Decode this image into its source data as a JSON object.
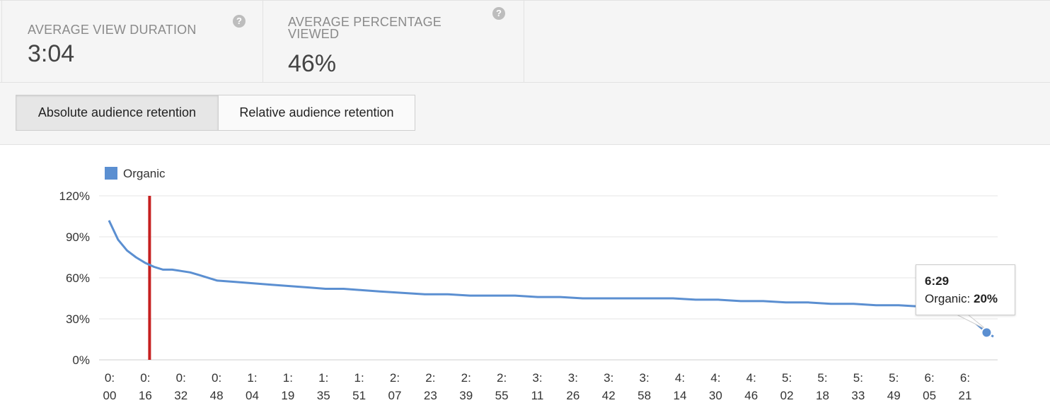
{
  "stats": [
    {
      "label": "AVERAGE VIEW DURATION",
      "value": "3:04",
      "help": "?"
    },
    {
      "label": "AVERAGE PERCENTAGE VIEWED",
      "value": "46%",
      "help": "?"
    }
  ],
  "tabs": {
    "absolute": "Absolute audience retention",
    "relative": "Relative audience retention",
    "selected": "absolute"
  },
  "tooltip": {
    "time": "6:29",
    "series": "Organic:",
    "value": "20%"
  },
  "colors": {
    "line": "#5b8fd1",
    "marker": "#c62020",
    "legend": "#5b8fd1"
  },
  "chart_data": {
    "type": "line",
    "legend": [
      "Organic"
    ],
    "ylim": [
      0,
      120
    ],
    "y_ticks": [
      "120%",
      "90%",
      "60%",
      "30%",
      "0%"
    ],
    "y_tick_values": [
      120,
      90,
      60,
      30,
      0
    ],
    "x_tick_labels": [
      [
        "0:",
        "00"
      ],
      [
        "0:",
        "16"
      ],
      [
        "0:",
        "32"
      ],
      [
        "0:",
        "48"
      ],
      [
        "1:",
        "04"
      ],
      [
        "1:",
        "19"
      ],
      [
        "1:",
        "35"
      ],
      [
        "1:",
        "51"
      ],
      [
        "2:",
        "07"
      ],
      [
        "2:",
        "23"
      ],
      [
        "2:",
        "39"
      ],
      [
        "2:",
        "55"
      ],
      [
        "3:",
        "11"
      ],
      [
        "3:",
        "26"
      ],
      [
        "3:",
        "42"
      ],
      [
        "3:",
        "58"
      ],
      [
        "4:",
        "14"
      ],
      [
        "4:",
        "30"
      ],
      [
        "4:",
        "46"
      ],
      [
        "5:",
        "02"
      ],
      [
        "5:",
        "18"
      ],
      [
        "5:",
        "33"
      ],
      [
        "5:",
        "49"
      ],
      [
        "6:",
        "05"
      ],
      [
        "6:",
        "21"
      ]
    ],
    "marker_x": 18,
    "grid": true,
    "highlight": {
      "x": 389,
      "y": 20
    },
    "series": [
      {
        "name": "Organic",
        "x": [
          0,
          4,
          8,
          12,
          16,
          20,
          24,
          28,
          32,
          36,
          40,
          48,
          56,
          64,
          72,
          80,
          88,
          96,
          104,
          112,
          120,
          130,
          140,
          150,
          160,
          170,
          180,
          190,
          200,
          210,
          220,
          230,
          240,
          250,
          260,
          270,
          280,
          290,
          300,
          310,
          320,
          330,
          340,
          350,
          360,
          370,
          376,
          380,
          384,
          389,
          392
        ],
        "values": [
          102,
          88,
          80,
          75,
          71,
          68,
          66,
          66,
          65,
          64,
          62,
          58,
          57,
          56,
          55,
          54,
          53,
          52,
          52,
          51,
          50,
          49,
          48,
          48,
          47,
          47,
          47,
          46,
          46,
          45,
          45,
          45,
          45,
          45,
          44,
          44,
          43,
          43,
          42,
          42,
          41,
          41,
          40,
          40,
          39,
          38,
          36,
          32,
          27,
          20,
          17
        ]
      }
    ]
  }
}
